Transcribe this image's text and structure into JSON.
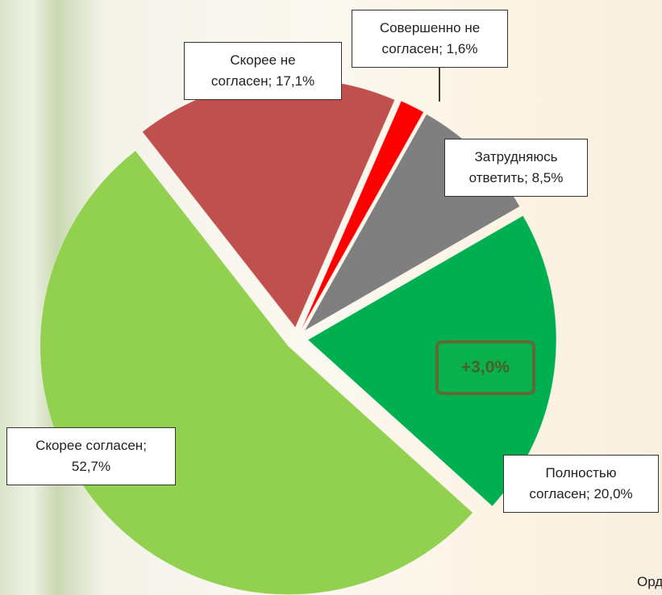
{
  "chart_data": {
    "type": "pie",
    "values": [
      20.0,
      52.7,
      17.1,
      1.6,
      8.5
    ],
    "value_labels": [
      "Полностью согласен; 20,0%",
      "Скорее согласен; 52,7%",
      "Скорее не согласен; 17,1%",
      "Совершенно не согласен; 1,6%",
      "Затрудняюсь ответить; 8,5%"
    ],
    "colors": [
      "#00b050",
      "#92d050",
      "#c0504d",
      "#ff0000",
      "#7f7f7f"
    ],
    "annotation": "+3,0%",
    "source": "Орд"
  }
}
